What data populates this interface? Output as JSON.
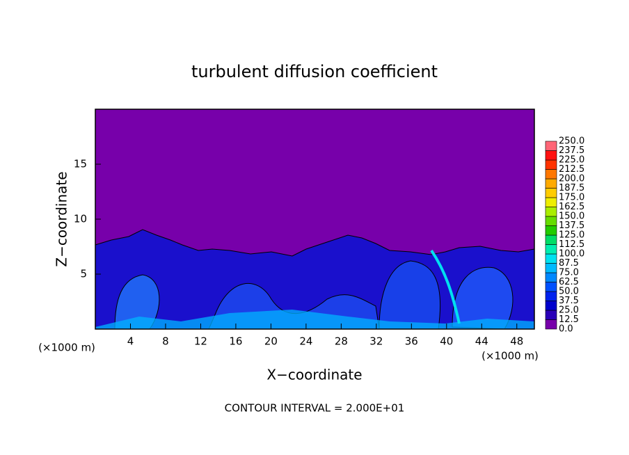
{
  "chart_data": {
    "type": "contour",
    "title": "turbulent diffusion coefficient",
    "xlabel": "X−coordinate",
    "ylabel": "Z−coordinate",
    "x_unit_label": "(×1000 m)",
    "y_unit_label": "(×1000 m)",
    "annotation": "CONTOUR INTERVAL = 2.000E+01",
    "xlim": [
      0,
      50
    ],
    "ylim": [
      0,
      20
    ],
    "xticks": [
      4,
      8,
      12,
      16,
      20,
      24,
      28,
      32,
      36,
      40,
      44,
      48
    ],
    "yticks": [
      5,
      10,
      15
    ],
    "colorbar": {
      "levels": [
        {
          "value": 0,
          "label": "0.0"
        },
        12.5,
        {
          "value": 25,
          "label": "25.0"
        },
        37.5,
        {
          "value": 50,
          "label": "50.0"
        },
        62.5,
        {
          "value": 75,
          "label": "75.0"
        },
        87.5,
        {
          "value": 100,
          "label": "100.0"
        },
        112.5,
        {
          "value": 125,
          "label": "125.0"
        },
        137.5,
        {
          "value": 150,
          "label": "150.0"
        },
        162.5,
        {
          "value": 175,
          "label": "175.0"
        },
        187.5,
        {
          "value": 200,
          "label": "200.0"
        },
        212.5,
        {
          "value": 225,
          "label": "225.0"
        },
        237.5,
        {
          "value": 250,
          "label": "250.0"
        }
      ],
      "colors": [
        "#7700aa",
        "#2a00b8",
        "#0000cc",
        "#0022ee",
        "#0050ff",
        "#0088ff",
        "#00bbff",
        "#00e2f0",
        "#00eeb0",
        "#00dd66",
        "#22cc00",
        "#66dd00",
        "#aaee00",
        "#eeee00",
        "#ffcc00",
        "#ffaa00",
        "#ff7700",
        "#ff3300",
        "#ff1111",
        "#ff6677"
      ]
    }
  }
}
